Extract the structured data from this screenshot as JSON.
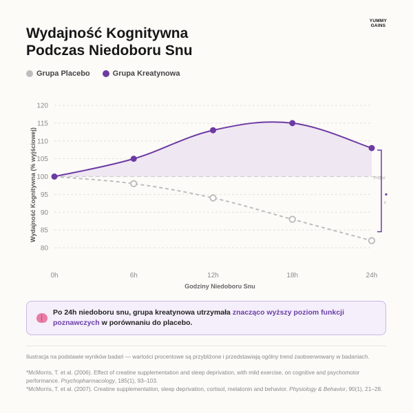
{
  "brand": {
    "line1": "YUMMY",
    "line2": "GAINS"
  },
  "title": {
    "line1": "Wydajność Kognitywna",
    "line2": "Podczas Niedoboru Snu"
  },
  "legend": {
    "placebo_label": "Grupa Placebo",
    "creatine_label": "Grupa Kreatynowa"
  },
  "colors": {
    "placebo": "#bdbdbd",
    "creatine": "#6c3aa3",
    "fill": "#ece3f0",
    "grid": "#e2e0da",
    "axis_text": "#8a8a8a"
  },
  "chart_data": {
    "type": "line",
    "title": "",
    "xlabel": "Godziny Niedoboru Snu",
    "ylabel": "Wydajność Kognitywna (% wyjściowej)",
    "x": [
      "0h",
      "6h",
      "12h",
      "18h",
      "24h"
    ],
    "ylim": [
      80,
      120
    ],
    "yticks": [
      120,
      115,
      110,
      105,
      100,
      95,
      90,
      85,
      80
    ],
    "grid": true,
    "legend_position": "top-left",
    "series": [
      {
        "name": "Grupa Placebo",
        "values": [
          100,
          98,
          94,
          88,
          82
        ],
        "style": "dashed"
      },
      {
        "name": "Grupa Kreatynowa",
        "values": [
          100,
          105,
          113,
          115,
          108
        ],
        "style": "solid"
      }
    ],
    "baseline_value": 100,
    "baseline_label": "Pozio",
    "annotation_text": "p"
  },
  "callout": {
    "text_before": "Po 24h niedoboru snu, grupa kreatynowa utrzymała ",
    "highlight": "znacząco wyższy poziom funkcji poznawczych",
    "text_after": " w porównaniu do placebo."
  },
  "notes": {
    "illustration": "Ilustracja na podstawie wyników badań — wartości procentowe są przybliżone i przedstawiają ogólny trend zaobserwowany w badaniach.",
    "ref1_main": "*McMorris, T. et al. (2006). Effect of creatine supplementation and sleep deprivation, with mild exercise, on cognitive and psychomotor performance.",
    "ref1_journal": "Psychopharmacology",
    "ref1_tail": ", 185(1), 93–103.",
    "ref2_main": "*McMorris, T. et al. (2007). Creatine supplementation, sleep deprivation, cortisol, melatonin and behavior. ",
    "ref2_journal": "Physiology & Behavior",
    "ref2_tail": ", 90(1), 21–28."
  }
}
